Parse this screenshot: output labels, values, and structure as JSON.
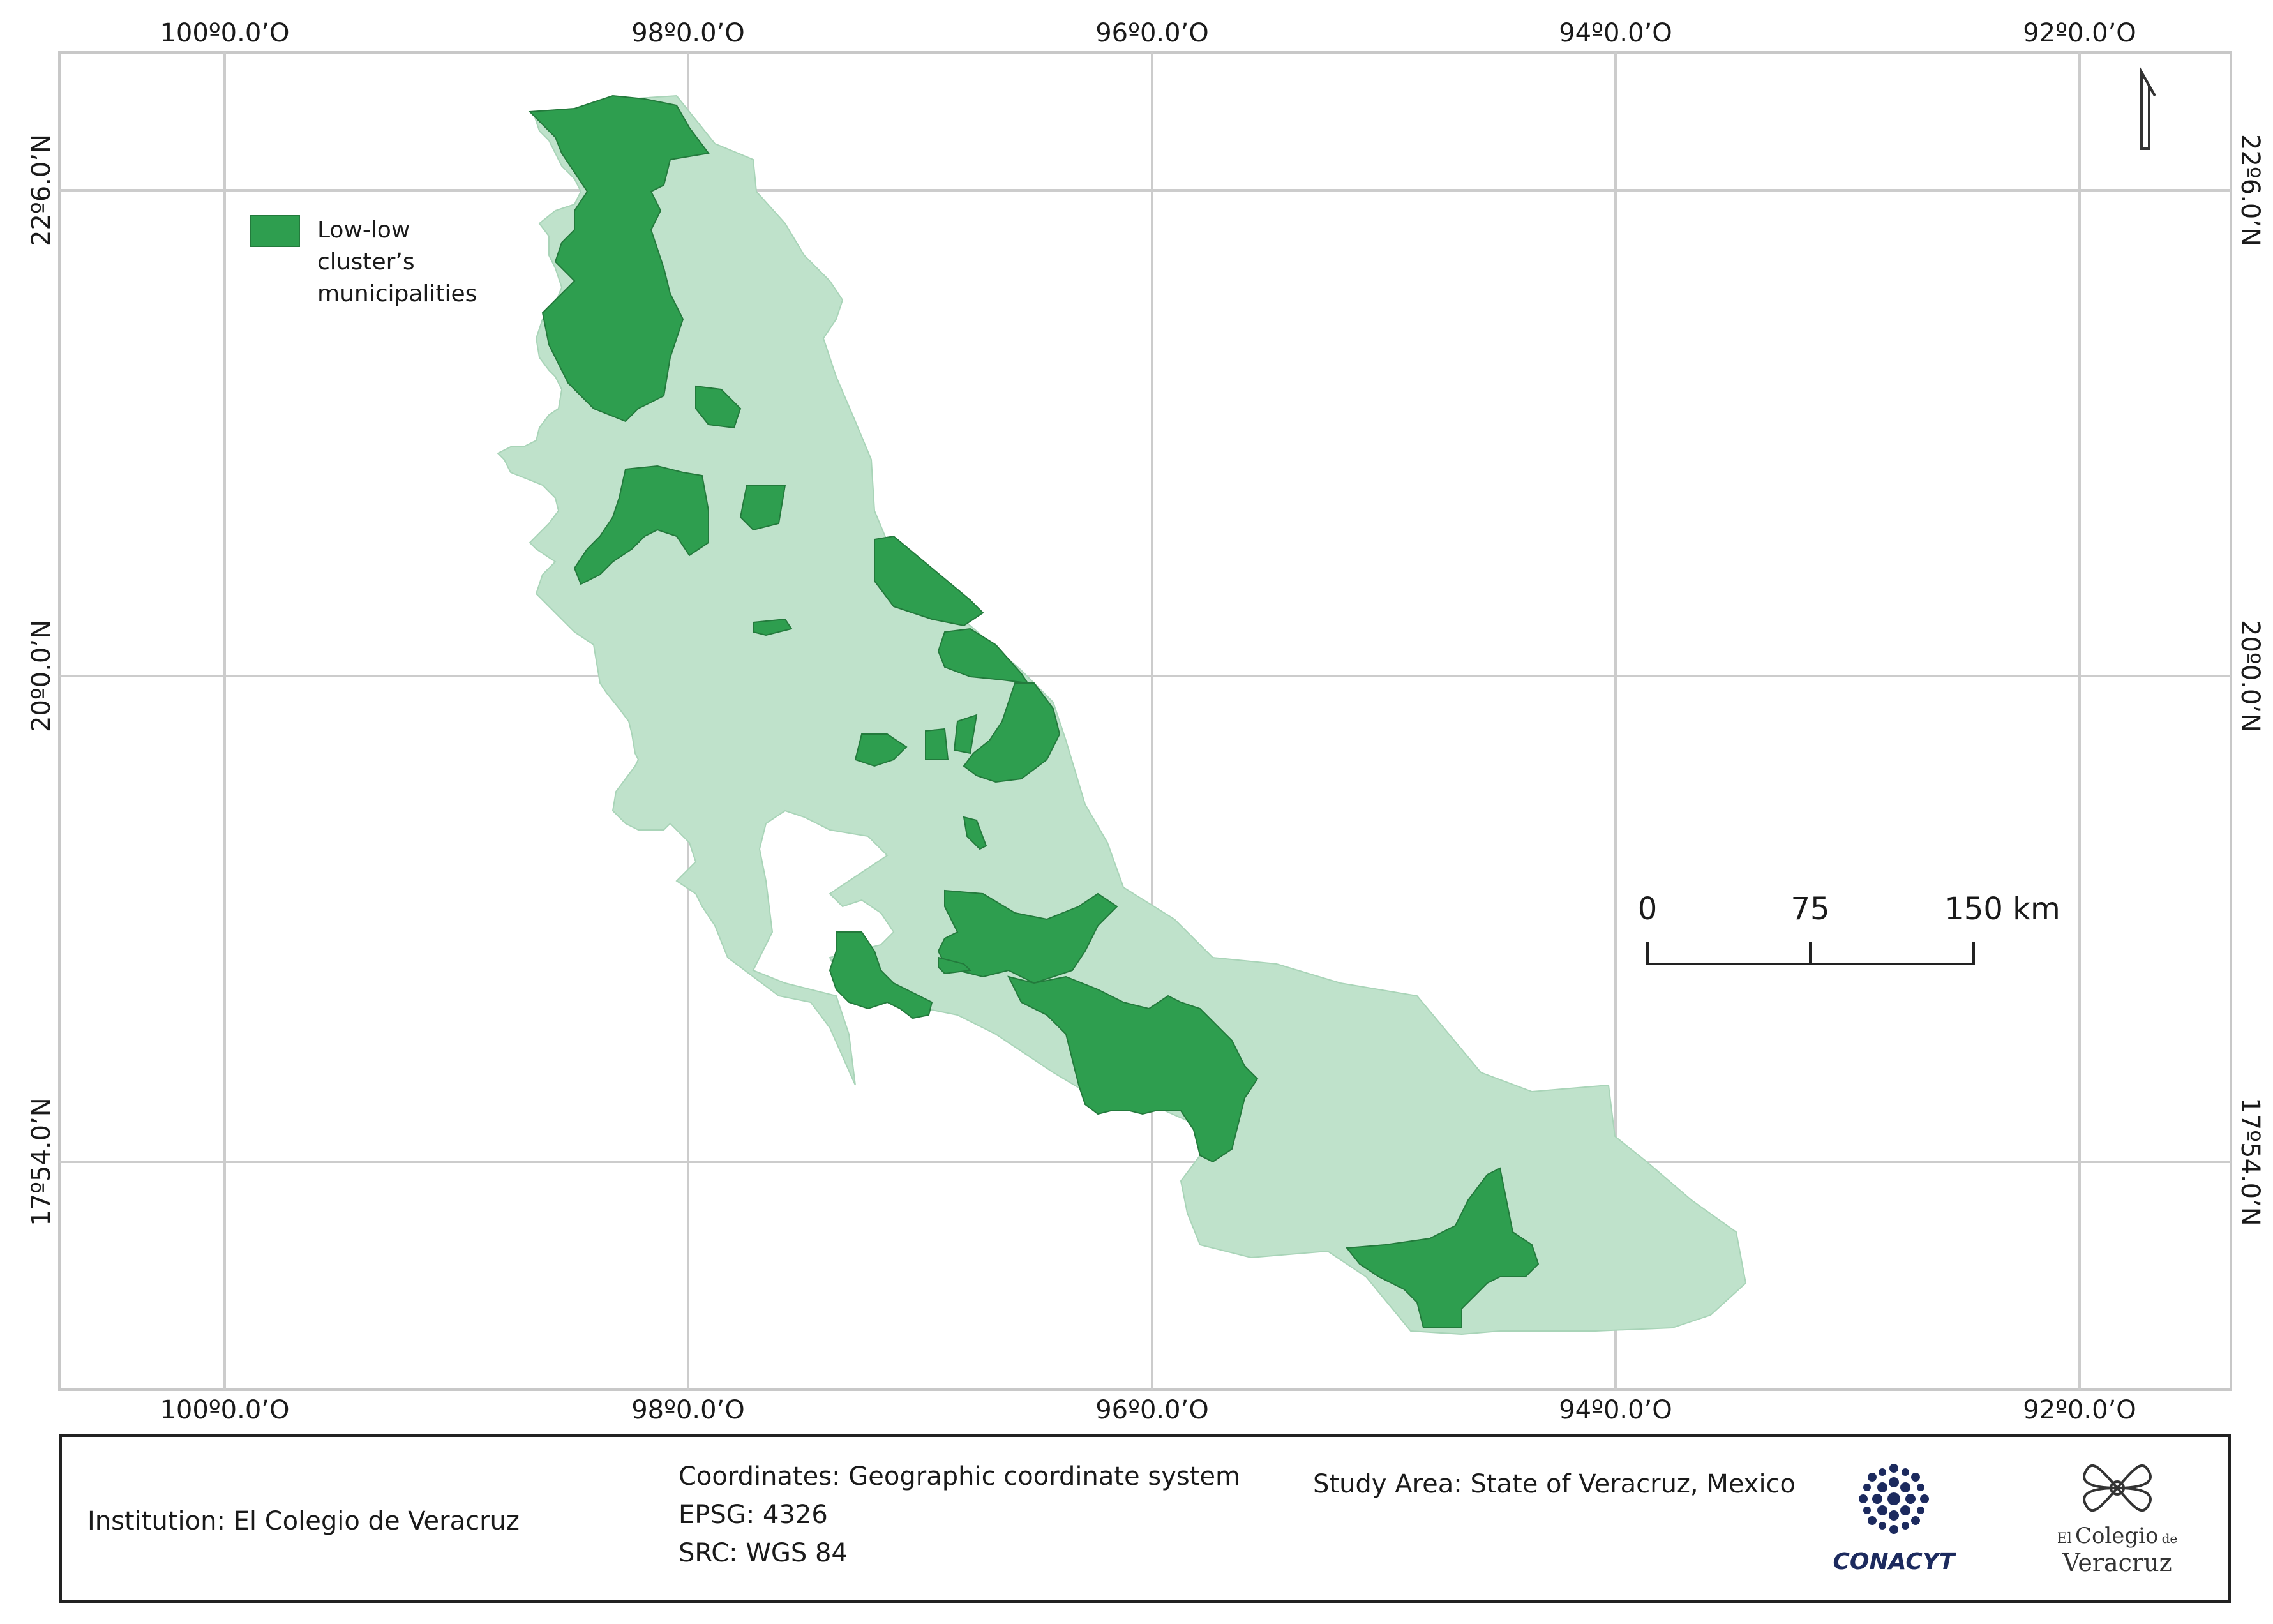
{
  "graticule": {
    "top_longitudes": [
      "100º0.0’O",
      "98º0.0’O",
      "96º0.0’O",
      "94º0.0’O",
      "92º0.0’O"
    ],
    "bottom_longitudes": [
      "100º0.0’O",
      "98º0.0’O",
      "96º0.0’O",
      "94º0.0’O",
      "92º0.0’O"
    ],
    "left_latitudes": [
      "22º6.0’N",
      "20º0.0’N",
      "17º54.0’N"
    ],
    "right_latitudes": [
      "22º6.0’N",
      "20º0.0’N",
      "17º54.0’N"
    ]
  },
  "legend": {
    "label_lines": [
      "Low-low",
      "cluster’s",
      "municipalities"
    ],
    "swatch_color": "#2e9e4f"
  },
  "colors": {
    "state_fill": "#bfe2cb",
    "cluster_fill": "#2e9e4f",
    "grid": "#cccccc"
  },
  "scale_bar": {
    "labels": [
      "0",
      "75",
      "150 km"
    ]
  },
  "north_arrow": {
    "icon": "north-arrow-icon"
  },
  "footer": {
    "institution": "Institution: El Colegio de Veracruz",
    "coordinates_lines": [
      "Coordinates: Geographic coordinate system",
      "EPSG: 4326",
      "SRC: WGS 84"
    ],
    "study_area": "Study Area: State of Veracruz, Mexico",
    "logo_conacyt": "CONACYT",
    "logo_colegio_lines": [
      "El",
      "Colegio",
      "de",
      "Veracruz"
    ]
  }
}
